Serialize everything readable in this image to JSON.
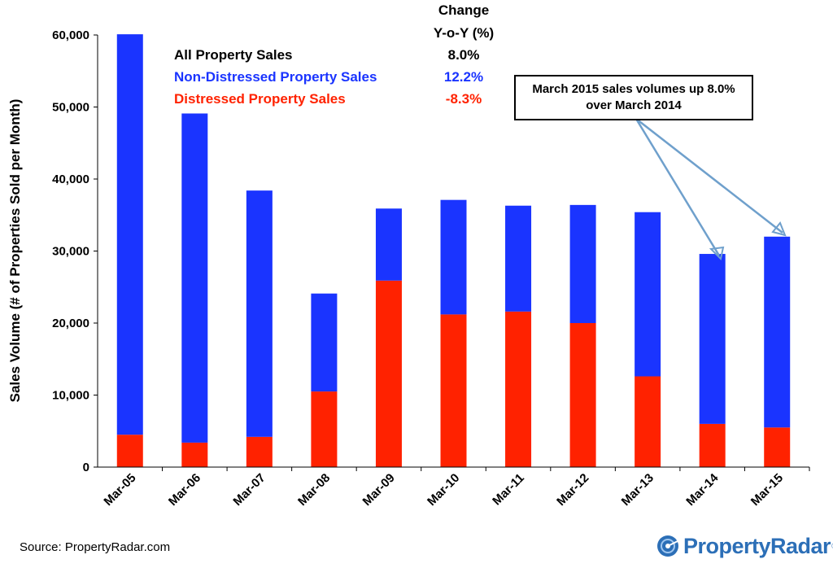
{
  "chart_data": {
    "type": "bar",
    "stacked": true,
    "categories": [
      "Mar-05",
      "Mar-06",
      "Mar-07",
      "Mar-08",
      "Mar-09",
      "Mar-10",
      "Mar-11",
      "Mar-12",
      "Mar-13",
      "Mar-14",
      "Mar-15"
    ],
    "series": [
      {
        "name": "Distressed Property Sales",
        "color": "#ff2200",
        "values": [
          4500,
          3400,
          4200,
          10500,
          25900,
          21200,
          21600,
          20000,
          12600,
          6000,
          5500
        ]
      },
      {
        "name": "Non-Distressed Property Sales",
        "color": "#1a34ff",
        "values": [
          55600,
          45700,
          34200,
          13600,
          10000,
          15900,
          14700,
          16400,
          22800,
          23600,
          26500
        ]
      }
    ],
    "totals": [
      60100,
      49100,
      38400,
      24100,
      35900,
      37100,
      36300,
      36400,
      35400,
      29600,
      32000
    ],
    "ylabel": "Sales Volume (# of Properties Sold per Month)",
    "xlabel": "",
    "ylim": [
      0,
      60000
    ],
    "yticks": [
      0,
      10000,
      20000,
      30000,
      40000,
      50000,
      60000
    ],
    "ytick_labels": [
      "0",
      "10,000",
      "20,000",
      "30,000",
      "40,000",
      "50,000",
      "60,000"
    ],
    "legend": {
      "placement": "top-left",
      "header_line1": "Change",
      "header_line2": "Y-o-Y (%)",
      "rows": [
        {
          "label": "All Property Sales",
          "change": "8.0%",
          "color": "#000000"
        },
        {
          "label": "Non-Distressed Property Sales",
          "change": "12.2%",
          "color": "#1a34ff"
        },
        {
          "label": "Distressed Property Sales",
          "change": "-8.3%",
          "color": "#ff2200"
        }
      ]
    },
    "annotation": {
      "line1": "March 2015 sales volumes up 8.0%",
      "line2": "over March 2014",
      "targets": [
        "Mar-14",
        "Mar-15"
      ],
      "arrow_color": "#6fa0cc"
    }
  },
  "footer": {
    "source": "Source: PropertyRadar.com",
    "logo_text": "PropertyRadar",
    "logo_mark": "®"
  }
}
